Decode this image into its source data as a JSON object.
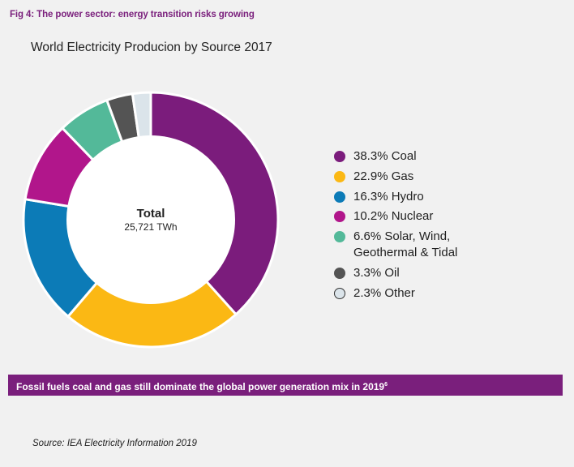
{
  "header": {
    "fig_label": "Fig 4: The power sector: energy transition risks growing"
  },
  "chart_data": {
    "type": "pie",
    "title": "World Electricity Producion by Source 2017",
    "center_label": "Total",
    "center_value": "25,721 TWh",
    "categories": [
      "Coal",
      "Gas",
      "Hydro",
      "Nuclear",
      "Solar, Wind, Geothermal & Tidal",
      "Oil",
      "Other"
    ],
    "values": [
      38.3,
      22.9,
      16.3,
      10.2,
      6.6,
      3.3,
      2.3
    ],
    "colors": [
      "#7b1c7c",
      "#fbb814",
      "#0c7bb7",
      "#b1168b",
      "#53b999",
      "#545454",
      "#dbe4ea"
    ],
    "legend": [
      "38.3% Coal",
      "22.9% Gas",
      "16.3% Hydro",
      "10.2% Nuclear",
      "6.6% Solar, Wind,\nGeothermal & Tidal",
      "3.3% Oil",
      "2.3% Other"
    ],
    "legend_position": "right",
    "start_angle": "top, clockwise"
  },
  "banner": {
    "text": "Fossil fuels coal and gas still dominate the global power generation mix in 2019",
    "superscript": "6",
    "color": "#7a1f7c"
  },
  "footer": {
    "source": "Source: IEA Electricity Information 2019"
  }
}
